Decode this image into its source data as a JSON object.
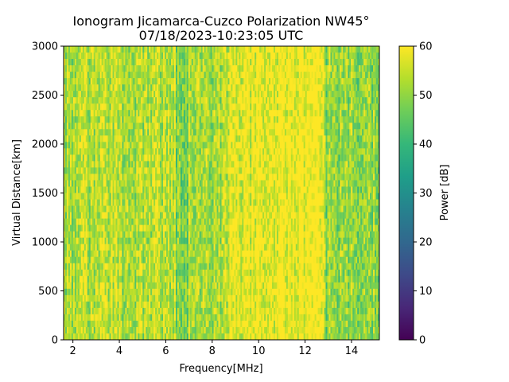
{
  "chart_data": {
    "type": "heatmap",
    "title": "Ionogram Jicamarca-Cuzco Polarization NW45°",
    "subtitle": "07/18/2023-10:23:05 UTC",
    "xlabel": "Frequency[MHz]",
    "ylabel": "Virtual Distance[km]",
    "xlim": [
      1.6,
      15.2
    ],
    "ylim": [
      0,
      3000
    ],
    "x_ticks": [
      2,
      4,
      6,
      8,
      10,
      12,
      14
    ],
    "y_ticks": [
      0,
      500,
      1000,
      1500,
      2000,
      2500,
      3000
    ],
    "colorbar": {
      "label": "Power [dB]",
      "range": [
        0,
        60
      ],
      "ticks": [
        0,
        10,
        20,
        30,
        40,
        50,
        60
      ],
      "colormap": "viridis"
    },
    "power_profile_db": [
      {
        "f_start": 1.6,
        "f_end": 2.3,
        "mean": 52
      },
      {
        "f_start": 2.3,
        "f_end": 3.0,
        "mean": 53
      },
      {
        "f_start": 3.0,
        "f_end": 4.0,
        "mean": 54
      },
      {
        "f_start": 4.0,
        "f_end": 5.5,
        "mean": 52
      },
      {
        "f_start": 5.5,
        "f_end": 6.4,
        "mean": 54
      },
      {
        "f_start": 6.4,
        "f_end": 7.0,
        "mean": 47
      },
      {
        "f_start": 7.0,
        "f_end": 8.7,
        "mean": 53
      },
      {
        "f_start": 8.7,
        "f_end": 9.9,
        "mean": 58
      },
      {
        "f_start": 9.9,
        "f_end": 12.8,
        "mean": 60
      },
      {
        "f_start": 12.8,
        "f_end": 15.2,
        "mean": 50
      }
    ],
    "grid": false
  }
}
